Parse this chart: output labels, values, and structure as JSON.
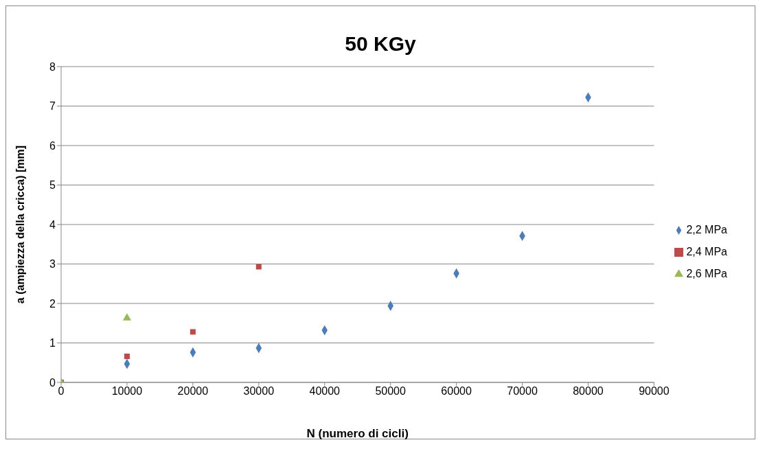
{
  "chart_data": {
    "type": "scatter",
    "title": "50 KGy",
    "xlabel": "N (numero di cicli)",
    "ylabel": "a (ampiezza della cricca) [mm]",
    "xlim": [
      0,
      90000
    ],
    "xticks": [
      0,
      10000,
      20000,
      30000,
      40000,
      50000,
      60000,
      70000,
      80000,
      90000
    ],
    "ylim": [
      0,
      8
    ],
    "yticks": [
      0,
      1,
      2,
      3,
      4,
      5,
      6,
      7,
      8
    ],
    "grid": "y",
    "legend": "right",
    "series": [
      {
        "name": "2,2 MPa",
        "color": "#4a7ebb",
        "marker": "diamond",
        "x": [
          10000,
          20000,
          30000,
          40000,
          50000,
          60000,
          70000,
          80000
        ],
        "values": [
          0.47,
          0.76,
          0.87,
          1.32,
          1.94,
          2.76,
          3.71,
          7.22
        ]
      },
      {
        "name": "2,4 MPa",
        "color": "#be4b48",
        "marker": "square",
        "x": [
          0,
          10000,
          20000,
          30000
        ],
        "values": [
          0,
          0.66,
          1.28,
          2.93
        ]
      },
      {
        "name": "2,6 MPa",
        "color": "#98b954",
        "marker": "triangle",
        "x": [
          0,
          10000
        ],
        "values": [
          0,
          1.63
        ]
      }
    ]
  }
}
